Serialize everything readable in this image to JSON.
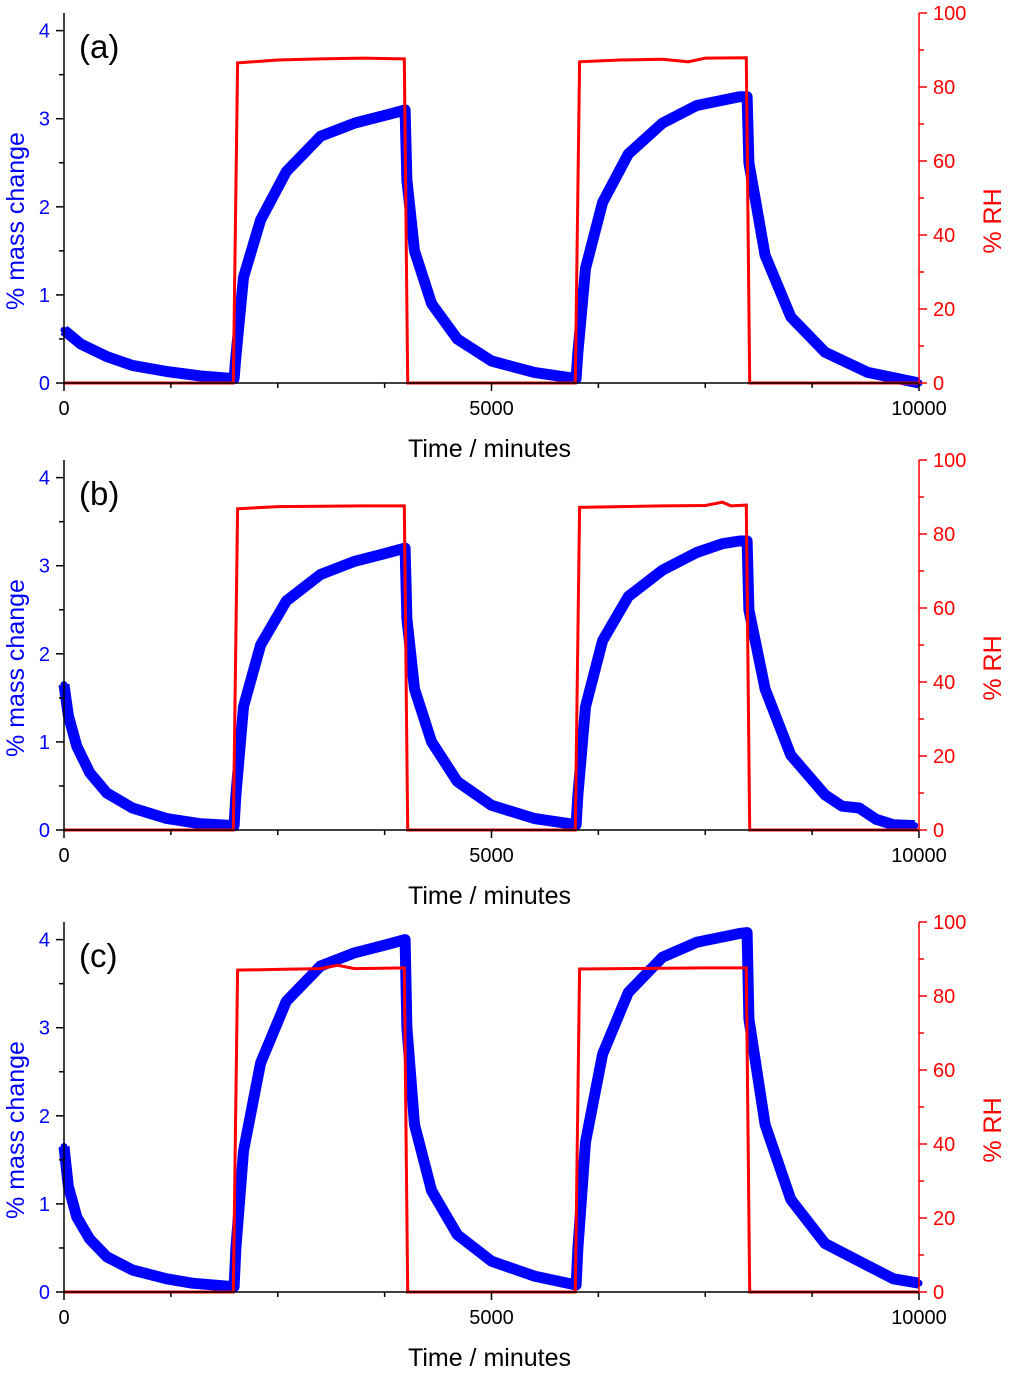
{
  "colors": {
    "mass": "#0000ff",
    "rh": "#ff0000",
    "axis": "#000000"
  },
  "chart_data": [
    {
      "type": "line",
      "panel_label": "(a)",
      "xlabel": "Time / minutes",
      "ylabel_left": "% mass change",
      "ylabel_right": "% RH",
      "xlim": [
        0,
        10000
      ],
      "ylim_left": [
        0,
        4.2
      ],
      "ylim_right": [
        0,
        100
      ],
      "x_ticks": [
        0,
        5000,
        10000
      ],
      "x_tick_labels": [
        "0",
        "5000",
        "10000"
      ],
      "y_left_ticks": [
        0,
        1,
        2,
        3,
        4
      ],
      "y_left_tick_labels": [
        "0",
        "1",
        "2",
        "3",
        "4"
      ],
      "y_right_ticks": [
        0,
        20,
        40,
        60,
        80,
        100
      ],
      "y_right_tick_labels": [
        "0",
        "20",
        "40",
        "60",
        "80",
        "100"
      ],
      "series": [
        {
          "axis": "left",
          "style": "thick-points",
          "x": [
            0,
            200,
            500,
            800,
            1200,
            1600,
            1990,
            2010,
            2100,
            2300,
            2600,
            3000,
            3400,
            3800,
            3990,
            4010,
            4100,
            4300,
            4600,
            5000,
            5500,
            5990,
            6010,
            6100,
            6300,
            6600,
            7000,
            7400,
            7900,
            7990,
            8010,
            8200,
            8500,
            8900,
            9400,
            10000
          ],
          "values": [
            0.6,
            0.44,
            0.3,
            0.2,
            0.13,
            0.08,
            0.05,
            0.3,
            1.2,
            1.85,
            2.4,
            2.8,
            2.95,
            3.05,
            3.1,
            2.3,
            1.5,
            0.9,
            0.5,
            0.25,
            0.12,
            0.05,
            0.35,
            1.3,
            2.05,
            2.6,
            2.95,
            3.15,
            3.25,
            3.25,
            2.5,
            1.45,
            0.75,
            0.35,
            0.12,
            0.0
          ]
        },
        {
          "axis": "right",
          "style": "line",
          "x": [
            0,
            1980,
            2030,
            2500,
            3000,
            3500,
            3980,
            4020,
            5980,
            6030,
            6500,
            7000,
            7300,
            7500,
            7980,
            8020,
            10000
          ],
          "values": [
            0,
            0,
            86.5,
            87.3,
            87.6,
            87.8,
            87.6,
            0,
            0,
            86.8,
            87.3,
            87.5,
            86.8,
            87.8,
            87.9,
            0,
            0
          ]
        }
      ]
    },
    {
      "type": "line",
      "panel_label": "(b)",
      "xlabel": "Time / minutes",
      "ylabel_left": "% mass change",
      "ylabel_right": "% RH",
      "xlim": [
        0,
        10000
      ],
      "ylim_left": [
        0,
        4.2
      ],
      "ylim_right": [
        0,
        100
      ],
      "x_ticks": [
        0,
        5000,
        10000
      ],
      "x_tick_labels": [
        "0",
        "5000",
        "10000"
      ],
      "y_left_ticks": [
        0,
        1,
        2,
        3,
        4
      ],
      "y_left_tick_labels": [
        "0",
        "1",
        "2",
        "3",
        "4"
      ],
      "y_right_ticks": [
        0,
        20,
        40,
        60,
        80,
        100
      ],
      "y_right_tick_labels": [
        "0",
        "20",
        "40",
        "60",
        "80",
        "100"
      ],
      "series": [
        {
          "axis": "left",
          "style": "thick-points",
          "x": [
            0,
            50,
            150,
            300,
            500,
            800,
            1200,
            1600,
            1990,
            2010,
            2100,
            2300,
            2600,
            3000,
            3400,
            3800,
            3990,
            4010,
            4100,
            4300,
            4600,
            5000,
            5500,
            5990,
            6010,
            6100,
            6300,
            6600,
            7000,
            7400,
            7700,
            7900,
            7990,
            8010,
            8200,
            8500,
            8900,
            9100,
            9300,
            9500,
            9700,
            9950
          ],
          "values": [
            1.65,
            1.3,
            0.95,
            0.65,
            0.42,
            0.25,
            0.13,
            0.07,
            0.05,
            0.4,
            1.4,
            2.1,
            2.6,
            2.9,
            3.05,
            3.15,
            3.2,
            2.4,
            1.6,
            1.0,
            0.55,
            0.28,
            0.13,
            0.06,
            0.4,
            1.4,
            2.15,
            2.65,
            2.95,
            3.15,
            3.25,
            3.28,
            3.28,
            2.5,
            1.6,
            0.85,
            0.4,
            0.27,
            0.25,
            0.12,
            0.06,
            0.05
          ]
        },
        {
          "axis": "right",
          "style": "line",
          "x": [
            0,
            1980,
            2030,
            2500,
            3000,
            3500,
            3980,
            4020,
            5980,
            6030,
            6500,
            7000,
            7500,
            7700,
            7800,
            7980,
            8020,
            10000
          ],
          "values": [
            0,
            0,
            86.8,
            87.4,
            87.5,
            87.6,
            87.6,
            0,
            0,
            87.2,
            87.4,
            87.6,
            87.7,
            88.6,
            87.6,
            87.8,
            0,
            0
          ]
        }
      ]
    },
    {
      "type": "line",
      "panel_label": "(c)",
      "xlabel": "Time / minutes",
      "ylabel_left": "% mass change",
      "ylabel_right": "% RH",
      "xlim": [
        0,
        10000
      ],
      "ylim_left": [
        0,
        4.2
      ],
      "ylim_right": [
        0,
        100
      ],
      "x_ticks": [
        0,
        5000,
        10000
      ],
      "x_tick_labels": [
        "0",
        "5000",
        "10000"
      ],
      "y_left_ticks": [
        0,
        1,
        2,
        3,
        4
      ],
      "y_left_tick_labels": [
        "0",
        "1",
        "2",
        "3",
        "4"
      ],
      "y_right_ticks": [
        0,
        20,
        40,
        60,
        80,
        100
      ],
      "y_right_tick_labels": [
        "0",
        "20",
        "40",
        "60",
        "80",
        "100"
      ],
      "series": [
        {
          "axis": "left",
          "style": "thick-points",
          "x": [
            0,
            50,
            150,
            300,
            500,
            800,
            1200,
            1500,
            1990,
            2010,
            2100,
            2300,
            2600,
            3000,
            3400,
            3800,
            3990,
            4010,
            4100,
            4300,
            4600,
            5000,
            5500,
            5990,
            6010,
            6100,
            6300,
            6600,
            7000,
            7400,
            7900,
            7990,
            8010,
            8200,
            8500,
            8900,
            9400,
            9700,
            10000
          ],
          "values": [
            1.65,
            1.2,
            0.85,
            0.6,
            0.4,
            0.25,
            0.15,
            0.1,
            0.06,
            0.5,
            1.6,
            2.6,
            3.3,
            3.7,
            3.85,
            3.95,
            4.0,
            3.0,
            1.9,
            1.15,
            0.65,
            0.35,
            0.18,
            0.08,
            0.5,
            1.7,
            2.7,
            3.4,
            3.8,
            3.97,
            4.07,
            4.08,
            3.1,
            1.9,
            1.05,
            0.55,
            0.3,
            0.15,
            0.1
          ]
        },
        {
          "axis": "right",
          "style": "line",
          "x": [
            0,
            1980,
            2030,
            2500,
            3000,
            3200,
            3400,
            3980,
            4020,
            5980,
            6030,
            6500,
            7000,
            7500,
            7980,
            8020,
            10000
          ],
          "values": [
            0,
            0,
            87.0,
            87.2,
            87.4,
            88.3,
            87.4,
            87.6,
            0,
            0,
            87.3,
            87.4,
            87.5,
            87.6,
            87.6,
            0,
            0
          ]
        }
      ]
    }
  ]
}
